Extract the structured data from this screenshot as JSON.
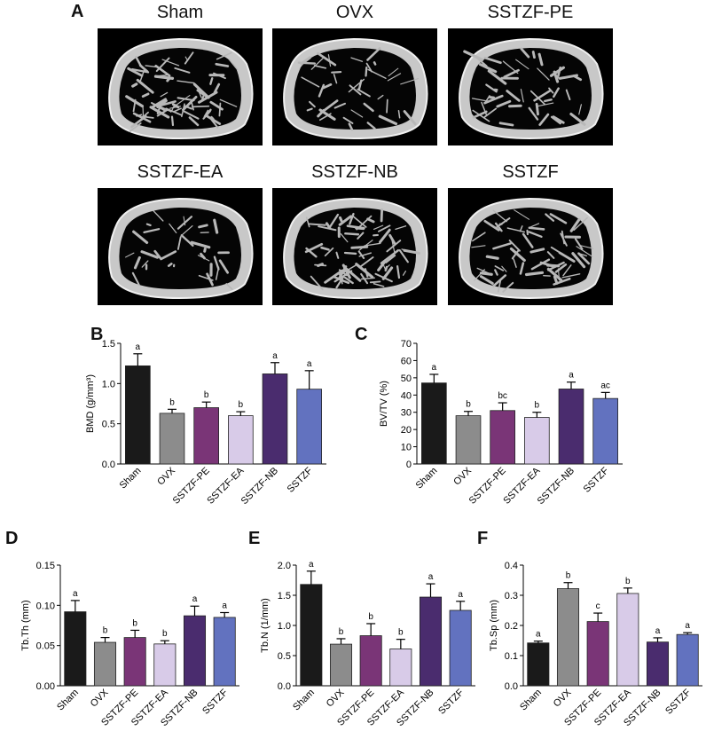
{
  "panels": {
    "A": "A",
    "B": "B",
    "C": "C",
    "D": "D",
    "E": "E",
    "F": "F"
  },
  "images": [
    {
      "title": "Sham",
      "density": 0.9
    },
    {
      "title": "OVX",
      "density": 0.35
    },
    {
      "title": "SSTZF-PE",
      "density": 0.45
    },
    {
      "title": "SSTZF-EA",
      "density": 0.25
    },
    {
      "title": "SSTZF-NB",
      "density": 0.85
    },
    {
      "title": "SSTZF",
      "density": 0.7
    }
  ],
  "colors": {
    "Sham": "#1a1a1a",
    "OVX": "#8c8c8c",
    "SSTZF-PE": "#7a3577",
    "SSTZF-EA": "#d8cbe8",
    "SSTZF-NB": "#4a2c6e",
    "SSTZF": "#6272bf"
  },
  "chart_data": [
    {
      "id": "B",
      "type": "bar",
      "ylabel": "BMD (g/mm³)",
      "categories": [
        "Sham",
        "OVX",
        "SSTZF-PE",
        "SSTZF-EA",
        "SSTZF-NB",
        "SSTZF"
      ],
      "values": [
        1.22,
        0.63,
        0.7,
        0.6,
        1.12,
        0.93
      ],
      "errors": [
        0.15,
        0.05,
        0.07,
        0.05,
        0.14,
        0.23
      ],
      "annotations": [
        "a",
        "b",
        "b",
        "b",
        "a",
        "a"
      ],
      "ylim": [
        0,
        1.5
      ],
      "yticks": [
        "0.0",
        "0.5",
        "1.0",
        "1.5"
      ]
    },
    {
      "id": "C",
      "type": "bar",
      "ylabel": "BV/TV  (%)",
      "categories": [
        "Sham",
        "OVX",
        "SSTZF-PE",
        "SSTZF-EA",
        "SSTZF-NB",
        "SSTZF"
      ],
      "values": [
        47,
        28,
        31,
        27,
        43.5,
        38
      ],
      "errors": [
        5,
        2.5,
        4.5,
        3,
        4,
        3.5
      ],
      "annotations": [
        "a",
        "b",
        "bc",
        "b",
        "a",
        "ac"
      ],
      "ylim": [
        0,
        70
      ],
      "yticks": [
        "0",
        "10",
        "20",
        "30",
        "40",
        "50",
        "60",
        "70"
      ]
    },
    {
      "id": "D",
      "type": "bar",
      "ylabel": "Tb.Th  (mm)",
      "categories": [
        "Sham",
        "OVX",
        "SSTZF-PE",
        "SSTZF-EA",
        "SSTZF-NB",
        "SSTZF"
      ],
      "values": [
        0.092,
        0.054,
        0.06,
        0.052,
        0.087,
        0.085
      ],
      "errors": [
        0.014,
        0.006,
        0.009,
        0.004,
        0.012,
        0.006
      ],
      "annotations": [
        "a",
        "b",
        "b",
        "b",
        "a",
        "a"
      ],
      "ylim": [
        0,
        0.15
      ],
      "yticks": [
        "0.00",
        "0.05",
        "0.10",
        "0.15"
      ]
    },
    {
      "id": "E",
      "type": "bar",
      "ylabel": "Tb.N  (1/mm)",
      "categories": [
        "Sham",
        "OVX",
        "SSTZF-PE",
        "SSTZF-EA",
        "SSTZF-NB",
        "SSTZF"
      ],
      "values": [
        1.68,
        0.69,
        0.83,
        0.61,
        1.47,
        1.25
      ],
      "errors": [
        0.22,
        0.09,
        0.2,
        0.16,
        0.22,
        0.15
      ],
      "annotations": [
        "a",
        "b",
        "b",
        "b",
        "a",
        "a"
      ],
      "ylim": [
        0,
        2.0
      ],
      "yticks": [
        "0.0",
        "0.5",
        "1.0",
        "1.5",
        "2.0"
      ]
    },
    {
      "id": "F",
      "type": "bar",
      "ylabel": "Tb.Sp  (mm)",
      "categories": [
        "Sham",
        "OVX",
        "SSTZF-PE",
        "SSTZF-EA",
        "SSTZF-NB",
        "SSTZF"
      ],
      "values": [
        0.142,
        0.322,
        0.213,
        0.306,
        0.145,
        0.17
      ],
      "errors": [
        0.006,
        0.02,
        0.028,
        0.018,
        0.014,
        0.006
      ],
      "annotations": [
        "a",
        "b",
        "c",
        "b",
        "a",
        "a"
      ],
      "ylim": [
        0,
        0.4
      ],
      "yticks": [
        "0.0",
        "0.1",
        "0.2",
        "0.3",
        "0.4"
      ]
    }
  ]
}
